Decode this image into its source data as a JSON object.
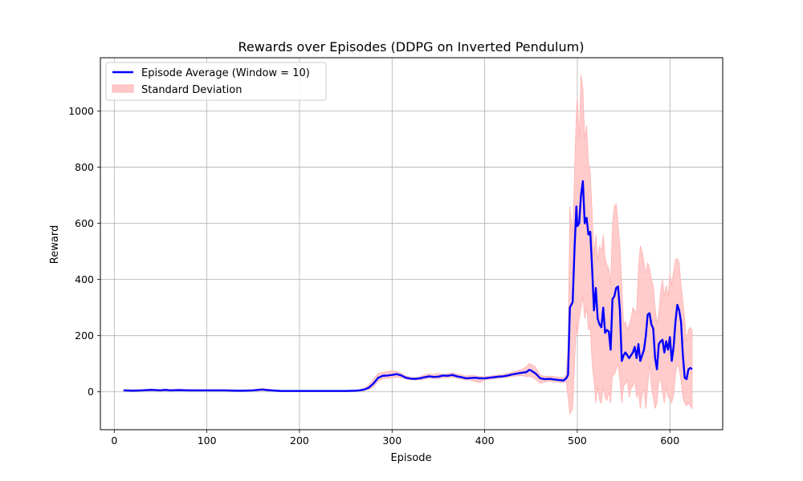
{
  "chart_data": {
    "type": "line",
    "title": "Rewards over Episodes (DDPG on Inverted Pendulum)",
    "xlabel": "Episode",
    "ylabel": "Reward",
    "xlim": [
      -15,
      657
    ],
    "ylim": [
      -135,
      1190
    ],
    "xticks": [
      0,
      100,
      200,
      300,
      400,
      500,
      600
    ],
    "yticks": [
      0,
      200,
      400,
      600,
      800,
      1000
    ],
    "grid": true,
    "legend_position": "top-left",
    "colors": {
      "mean": "#0000ff",
      "band": "#ffc8c8",
      "band_edge": "#ffb4b4",
      "grid": "#b0b0b0"
    },
    "series": [
      {
        "name": "Episode Average (Window = 10)",
        "kind": "line",
        "x": [
          10,
          20,
          30,
          40,
          50,
          55,
          60,
          70,
          80,
          90,
          100,
          110,
          120,
          130,
          140,
          150,
          160,
          165,
          170,
          180,
          190,
          200,
          210,
          220,
          230,
          240,
          250,
          260,
          265,
          270,
          275,
          280,
          285,
          290,
          295,
          300,
          305,
          310,
          315,
          320,
          325,
          330,
          335,
          340,
          345,
          350,
          355,
          360,
          365,
          370,
          375,
          380,
          385,
          390,
          395,
          400,
          405,
          410,
          415,
          420,
          425,
          430,
          435,
          440,
          445,
          448,
          450,
          455,
          460,
          465,
          470,
          475,
          480,
          485,
          488,
          490,
          492,
          495,
          497,
          499,
          500,
          502,
          504,
          506,
          508,
          510,
          512,
          514,
          516,
          518,
          520,
          522,
          524,
          526,
          528,
          530,
          532,
          534,
          536,
          538,
          540,
          542,
          544,
          546,
          548,
          550,
          552,
          554,
          556,
          558,
          560,
          562,
          564,
          566,
          568,
          570,
          572,
          574,
          576,
          578,
          580,
          582,
          584,
          586,
          588,
          590,
          592,
          594,
          596,
          598,
          600,
          602,
          604,
          606,
          608,
          610,
          612,
          614,
          616,
          618,
          620,
          622,
          624
        ],
        "y": [
          5,
          4,
          5,
          7,
          5,
          7,
          5,
          6,
          5,
          5,
          5,
          5,
          5,
          4,
          4,
          5,
          8,
          6,
          5,
          3,
          3,
          3,
          3,
          3,
          3,
          3,
          3,
          4,
          5,
          8,
          15,
          30,
          50,
          57,
          58,
          60,
          63,
          58,
          50,
          47,
          46,
          48,
          52,
          55,
          53,
          54,
          58,
          57,
          60,
          55,
          52,
          48,
          49,
          50,
          48,
          48,
          50,
          52,
          54,
          55,
          58,
          62,
          65,
          68,
          70,
          78,
          76,
          65,
          48,
          45,
          46,
          44,
          42,
          40,
          48,
          60,
          300,
          320,
          510,
          660,
          590,
          600,
          700,
          750,
          600,
          620,
          560,
          570,
          440,
          290,
          370,
          260,
          240,
          230,
          300,
          210,
          220,
          215,
          150,
          330,
          340,
          370,
          375,
          290,
          110,
          130,
          140,
          130,
          120,
          130,
          140,
          160,
          120,
          170,
          110,
          130,
          150,
          200,
          275,
          280,
          240,
          225,
          120,
          80,
          170,
          180,
          185,
          140,
          180,
          150,
          195,
          110,
          160,
          250,
          310,
          290,
          250,
          130,
          50,
          45,
          80,
          85,
          80
        ]
      },
      {
        "name": "Standard Deviation",
        "kind": "band",
        "x": [
          10,
          20,
          30,
          40,
          50,
          55,
          60,
          70,
          80,
          90,
          100,
          110,
          120,
          130,
          140,
          150,
          160,
          165,
          170,
          180,
          190,
          200,
          210,
          220,
          230,
          240,
          250,
          260,
          265,
          270,
          275,
          280,
          285,
          290,
          295,
          300,
          305,
          310,
          315,
          320,
          325,
          330,
          335,
          340,
          345,
          350,
          355,
          360,
          365,
          370,
          375,
          380,
          385,
          390,
          395,
          400,
          405,
          410,
          415,
          420,
          425,
          430,
          435,
          440,
          445,
          448,
          450,
          455,
          460,
          465,
          470,
          475,
          480,
          485,
          488,
          490,
          492,
          495,
          497,
          499,
          500,
          502,
          504,
          506,
          508,
          510,
          512,
          514,
          516,
          518,
          520,
          522,
          524,
          526,
          528,
          530,
          532,
          534,
          536,
          538,
          540,
          542,
          544,
          546,
          548,
          550,
          552,
          554,
          556,
          558,
          560,
          562,
          564,
          566,
          568,
          570,
          572,
          574,
          576,
          578,
          580,
          582,
          584,
          586,
          588,
          590,
          592,
          594,
          596,
          598,
          600,
          602,
          604,
          606,
          608,
          610,
          612,
          614,
          616,
          618,
          620,
          622,
          624
        ],
        "upper": [
          8,
          7,
          8,
          10,
          8,
          10,
          8,
          9,
          8,
          8,
          8,
          8,
          8,
          7,
          7,
          8,
          12,
          10,
          8,
          5,
          5,
          5,
          5,
          5,
          5,
          5,
          5,
          6,
          8,
          12,
          25,
          45,
          65,
          70,
          72,
          75,
          72,
          66,
          56,
          52,
          50,
          54,
          60,
          64,
          62,
          66,
          62,
          64,
          68,
          64,
          60,
          56,
          58,
          57,
          54,
          54,
          56,
          58,
          60,
          62,
          66,
          70,
          75,
          80,
          90,
          100,
          98,
          88,
          60,
          55,
          56,
          54,
          52,
          50,
          60,
          160,
          660,
          560,
          780,
          1000,
          1050,
          900,
          1130,
          1080,
          900,
          950,
          820,
          780,
          640,
          480,
          560,
          470,
          520,
          500,
          560,
          480,
          450,
          440,
          380,
          600,
          660,
          670,
          600,
          520,
          380,
          240,
          250,
          220,
          240,
          260,
          300,
          290,
          280,
          440,
          520,
          500,
          460,
          420,
          460,
          440,
          400,
          380,
          300,
          240,
          280,
          360,
          400,
          340,
          380,
          340,
          420,
          380,
          430,
          470,
          475,
          460,
          380,
          320,
          260,
          180,
          220,
          230,
          220
        ],
        "lower": [
          3,
          2,
          3,
          4,
          3,
          4,
          3,
          4,
          3,
          3,
          3,
          3,
          3,
          2,
          2,
          3,
          5,
          3,
          3,
          1,
          1,
          1,
          1,
          1,
          1,
          1,
          1,
          2,
          3,
          5,
          8,
          18,
          38,
          46,
          48,
          50,
          52,
          50,
          45,
          43,
          42,
          43,
          45,
          48,
          47,
          46,
          50,
          50,
          52,
          48,
          45,
          42,
          42,
          35,
          33,
          42,
          44,
          46,
          48,
          50,
          52,
          55,
          56,
          58,
          54,
          55,
          54,
          44,
          30,
          35,
          38,
          36,
          34,
          33,
          36,
          -20,
          -80,
          -60,
          100,
          240,
          200,
          260,
          300,
          340,
          260,
          300,
          220,
          230,
          100,
          40,
          -40,
          20,
          -30,
          -40,
          20,
          -20,
          -30,
          0,
          -40,
          60,
          60,
          80,
          100,
          40,
          -40,
          20,
          30,
          40,
          -20,
          10,
          20,
          40,
          -20,
          0,
          -60,
          -10,
          10,
          -60,
          20,
          100,
          20,
          -20,
          -60,
          -40,
          40,
          40,
          0,
          -40,
          20,
          -20,
          -20,
          -40,
          -10,
          60,
          100,
          80,
          40,
          -20,
          -40,
          -50,
          -40,
          -50,
          -60
        ]
      }
    ]
  }
}
